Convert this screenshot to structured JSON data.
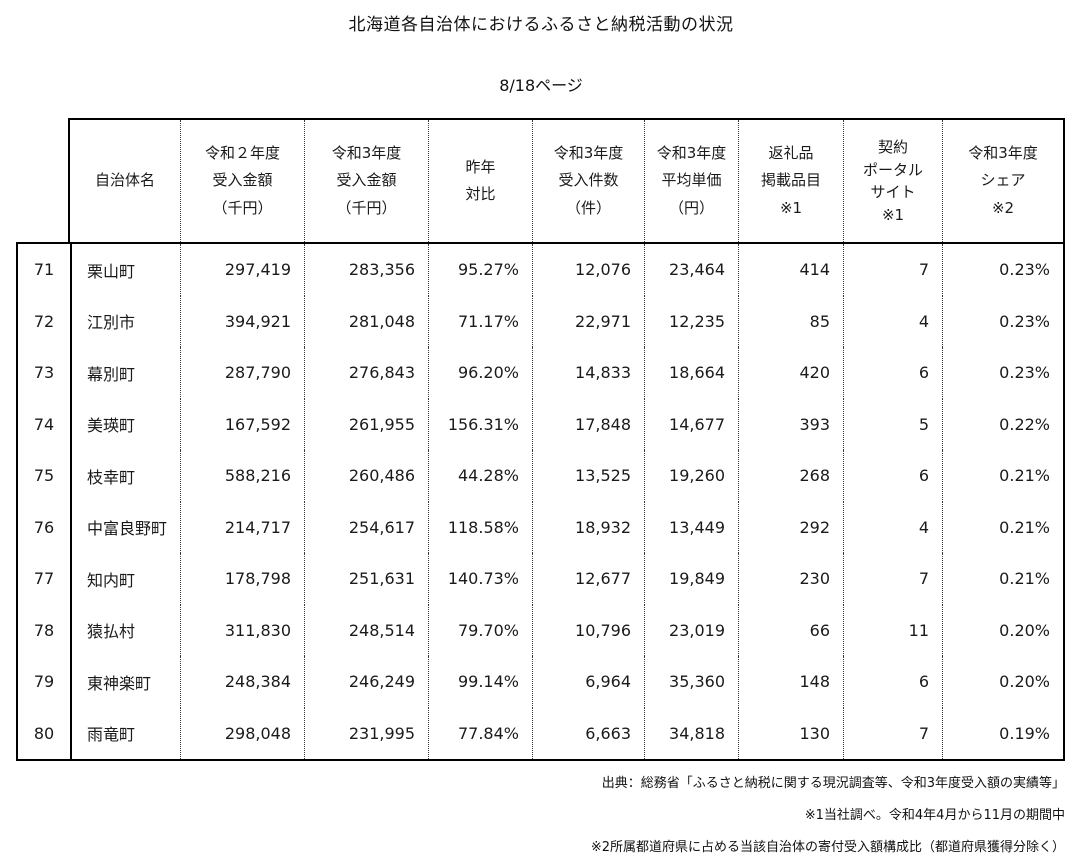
{
  "page": {
    "title": "北海道各自治体におけるふるさと納税活動の状況",
    "page_label": "8/18ページ"
  },
  "table": {
    "headers": [
      {
        "key": "name",
        "lines": [
          "自治体名"
        ]
      },
      {
        "key": "r2_amount",
        "lines": [
          "令和２年度",
          "受入金額",
          "（千円）"
        ]
      },
      {
        "key": "r3_amount",
        "lines": [
          "令和3年度",
          "受入金額",
          "（千円）"
        ]
      },
      {
        "key": "yoy",
        "lines": [
          "昨年",
          "対比"
        ]
      },
      {
        "key": "count",
        "lines": [
          "令和3年度",
          "受入件数",
          "（件）"
        ]
      },
      {
        "key": "avg_price",
        "lines": [
          "令和3年度",
          "平均単価",
          "（円）"
        ]
      },
      {
        "key": "items",
        "lines": [
          "返礼品",
          "掲載品目",
          "※1"
        ]
      },
      {
        "key": "portals",
        "lines": [
          "契約",
          "ポータル",
          "サイト",
          "※1"
        ]
      },
      {
        "key": "share",
        "lines": [
          "令和3年度",
          "シェア",
          "※2"
        ]
      }
    ],
    "rows": [
      {
        "rank": "71",
        "name": "栗山町",
        "r2_amount": "297,419",
        "r3_amount": "283,356",
        "yoy": "95.27%",
        "count": "12,076",
        "avg_price": "23,464",
        "items": "414",
        "portals": "7",
        "share": "0.23%"
      },
      {
        "rank": "72",
        "name": "江別市",
        "r2_amount": "394,921",
        "r3_amount": "281,048",
        "yoy": "71.17%",
        "count": "22,971",
        "avg_price": "12,235",
        "items": "85",
        "portals": "4",
        "share": "0.23%"
      },
      {
        "rank": "73",
        "name": "幕別町",
        "r2_amount": "287,790",
        "r3_amount": "276,843",
        "yoy": "96.20%",
        "count": "14,833",
        "avg_price": "18,664",
        "items": "420",
        "portals": "6",
        "share": "0.23%"
      },
      {
        "rank": "74",
        "name": "美瑛町",
        "r2_amount": "167,592",
        "r3_amount": "261,955",
        "yoy": "156.31%",
        "count": "17,848",
        "avg_price": "14,677",
        "items": "393",
        "portals": "5",
        "share": "0.22%"
      },
      {
        "rank": "75",
        "name": "枝幸町",
        "r2_amount": "588,216",
        "r3_amount": "260,486",
        "yoy": "44.28%",
        "count": "13,525",
        "avg_price": "19,260",
        "items": "268",
        "portals": "6",
        "share": "0.21%"
      },
      {
        "rank": "76",
        "name": "中富良野町",
        "r2_amount": "214,717",
        "r3_amount": "254,617",
        "yoy": "118.58%",
        "count": "18,932",
        "avg_price": "13,449",
        "items": "292",
        "portals": "4",
        "share": "0.21%"
      },
      {
        "rank": "77",
        "name": "知内町",
        "r2_amount": "178,798",
        "r3_amount": "251,631",
        "yoy": "140.73%",
        "count": "12,677",
        "avg_price": "19,849",
        "items": "230",
        "portals": "7",
        "share": "0.21%"
      },
      {
        "rank": "78",
        "name": "猿払村",
        "r2_amount": "311,830",
        "r3_amount": "248,514",
        "yoy": "79.70%",
        "count": "10,796",
        "avg_price": "23,019",
        "items": "66",
        "portals": "11",
        "share": "0.20%"
      },
      {
        "rank": "79",
        "name": "東神楽町",
        "r2_amount": "248,384",
        "r3_amount": "246,249",
        "yoy": "99.14%",
        "count": "6,964",
        "avg_price": "35,360",
        "items": "148",
        "portals": "6",
        "share": "0.20%"
      },
      {
        "rank": "80",
        "name": "雨竜町",
        "r2_amount": "298,048",
        "r3_amount": "231,995",
        "yoy": "77.84%",
        "count": "6,663",
        "avg_price": "34,818",
        "items": "130",
        "portals": "7",
        "share": "0.19%"
      }
    ]
  },
  "footer": {
    "source": "出典：総務省「ふるさと納税に関する現況調査等、令和3年度受入額の実績等」",
    "note1": "※1当社調べ。令和4年4月から11月の期間中",
    "note2": "※2所属都道府県に占める当該自治体の寄付受入額構成比（都道府県獲得分除く）"
  }
}
